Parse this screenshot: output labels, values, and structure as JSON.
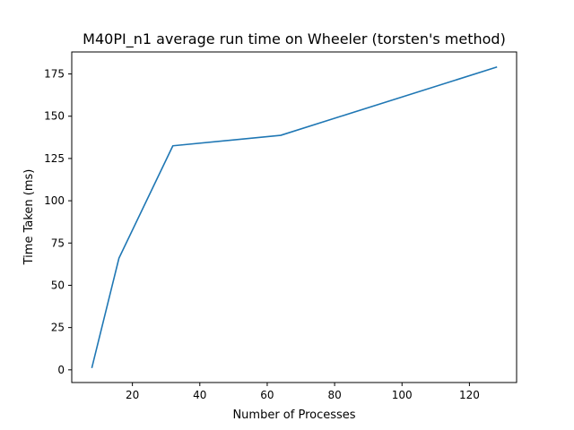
{
  "chart_data": {
    "type": "line",
    "title": "M40PI_n1 average run time on Wheeler (torsten's method)",
    "xlabel": "Number of Processes",
    "ylabel": "Time Taken (ms)",
    "xlim": [
      2,
      134
    ],
    "ylim": [
      -7.5,
      188
    ],
    "x_ticks": [
      20,
      40,
      60,
      80,
      100,
      120
    ],
    "y_ticks": [
      0,
      25,
      50,
      75,
      100,
      125,
      150,
      175
    ],
    "grid": false,
    "series": [
      {
        "color": "#1f77b4",
        "x": [
          8,
          16,
          32,
          64,
          128
        ],
        "y": [
          1.5,
          66,
          132.5,
          138.7,
          179
        ]
      }
    ]
  }
}
